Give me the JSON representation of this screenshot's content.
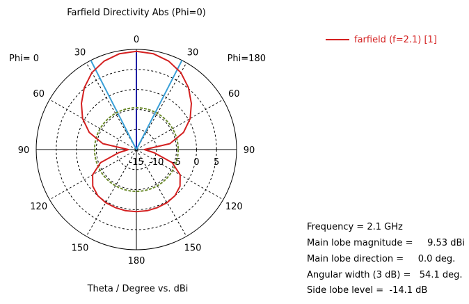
{
  "chart_data": {
    "type": "polar",
    "title": "Farfield Directivity Abs (Phi=0)",
    "xlabel": "Theta / Degree vs. dBi",
    "left_label": "Phi=  0",
    "right_label": "Phi=180",
    "angle_ticks": [
      {
        "deg": 0,
        "label": "0"
      },
      {
        "deg": 30,
        "label": "30"
      },
      {
        "deg": -30,
        "label": "30"
      },
      {
        "deg": 60,
        "label": "60"
      },
      {
        "deg": -60,
        "label": "60"
      },
      {
        "deg": 90,
        "label": "90"
      },
      {
        "deg": -90,
        "label": "90"
      },
      {
        "deg": 120,
        "label": "120"
      },
      {
        "deg": -120,
        "label": "120"
      },
      {
        "deg": 150,
        "label": "150"
      },
      {
        "deg": -150,
        "label": "150"
      },
      {
        "deg": 180,
        "label": "180"
      }
    ],
    "radial_ticks": [
      "-15",
      "-10",
      "-5",
      "0",
      "5"
    ],
    "r_min": -15,
    "r_max": 10,
    "radial_grid_values": [
      -10,
      -5,
      0,
      5
    ],
    "legend_position": "top-right",
    "series": [
      {
        "name": "farfield (f=2.1) [1]",
        "color": "#d42020",
        "theta_deg": [
          0,
          10,
          20,
          30,
          40,
          50,
          60,
          70,
          80,
          90,
          100,
          110,
          120,
          130,
          140,
          150,
          160,
          170,
          180
        ],
        "directivity_dbi": [
          9.53,
          9.3,
          8.5,
          7.2,
          5.2,
          2.9,
          0.5,
          -2.5,
          -6.5,
          -13.0,
          -10.5,
          -5.5,
          -2.4,
          -0.8,
          0.0,
          0.3,
          0.4,
          0.5,
          0.5
        ]
      }
    ],
    "reference_levels": [
      {
        "description": "main lobe max",
        "value_dbi": 9.53,
        "color": "#1f1fa3"
      },
      {
        "description": "3 dB beamwidth edges",
        "angle_deg": [
          -27.05,
          27.05
        ],
        "color": "#3aa0d8"
      },
      {
        "description": "side lobe level",
        "value_dbi": -4.57,
        "color": "#6b8a2c"
      }
    ],
    "colors": {
      "grid": "#000000",
      "main_lobe_line": "#1f1fa3",
      "beamwidth_lines": "#3aa0d8",
      "side_lobe_circle": "#6b8a2c",
      "curve": "#d42020"
    }
  },
  "info": {
    "frequency": "Frequency = 2.1 GHz",
    "main_lobe_magnitude": "Main lobe magnitude =     9.53 dBi",
    "main_lobe_direction": "Main lobe direction =     0.0 deg.",
    "angular_width": "Angular width (3 dB) =   54.1 deg.",
    "side_lobe_level": "Side lobe level =  -14.1 dB"
  }
}
